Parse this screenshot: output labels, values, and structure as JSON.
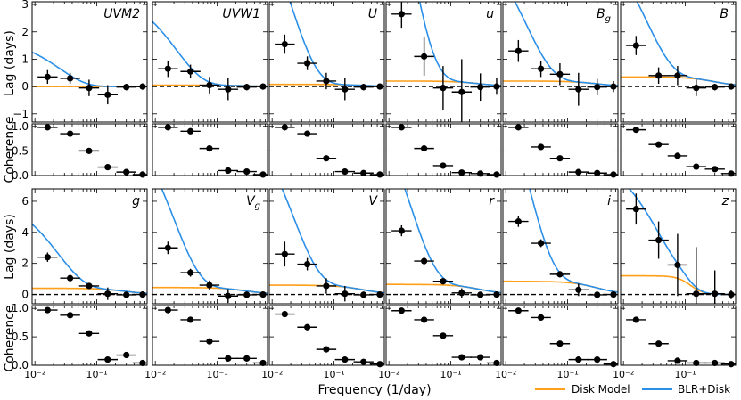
{
  "figure": {
    "xlabel": "Frequency (1/day)",
    "legend": [
      {
        "label": "Disk Model",
        "color": "#ff9f1a"
      },
      {
        "label": "BLR+Disk",
        "color": "#2b8fe8"
      }
    ],
    "row_labels": {
      "lag": "Lag (days)",
      "coherence": "Coherence"
    },
    "x_tick_labels": [
      "10⁻²",
      "10⁻¹"
    ],
    "x_scale": "log",
    "xlim": [
      0.009,
      0.65
    ]
  },
  "chart_data": [
    {
      "row": 1,
      "type": "scatter",
      "x": "frequency (1/day), log scale",
      "lag_ylim": [
        -1.3,
        3.1
      ],
      "lag_yticks": [
        "−1",
        "0",
        "1",
        "2",
        "3"
      ],
      "coherence_ylim": [
        0,
        1.05
      ],
      "coherence_yticks": [
        "0.0",
        "0.5",
        "1.0"
      ],
      "panels": [
        {
          "band": "UVM2",
          "lag": {
            "x": [
              0.016,
              0.037,
              0.075,
              0.15,
              0.3,
              0.55
            ],
            "y": [
              0.35,
              0.3,
              -0.05,
              -0.3,
              -0.02,
              0.0
            ],
            "yerr": [
              0.25,
              0.2,
              0.3,
              0.35,
              0.12,
              0.1
            ]
          },
          "coherence": {
            "x": [
              0.016,
              0.037,
              0.075,
              0.15,
              0.3,
              0.55
            ],
            "y": [
              0.98,
              0.85,
              0.5,
              0.17,
              0.07,
              0.02
            ]
          },
          "disk": {
            "a": 0.0,
            "fc": 0.3,
            "p": 2
          },
          "blr": {
            "A": 1.8,
            "f0": 0.025
          }
        },
        {
          "band": "UVW1",
          "lag": {
            "x": [
              0.016,
              0.037,
              0.075,
              0.15,
              0.3,
              0.55
            ],
            "y": [
              0.65,
              0.55,
              0.05,
              -0.1,
              -0.02,
              0.0
            ],
            "yerr": [
              0.3,
              0.25,
              0.3,
              0.4,
              0.12,
              0.1
            ]
          },
          "coherence": {
            "x": [
              0.016,
              0.037,
              0.075,
              0.15,
              0.3,
              0.55
            ],
            "y": [
              0.98,
              0.9,
              0.55,
              0.1,
              0.08,
              0.02
            ]
          },
          "disk": {
            "a": 0.05,
            "fc": 0.3,
            "p": 2
          },
          "blr": {
            "A": 3.5,
            "f0": 0.022
          }
        },
        {
          "band": "U",
          "lag": {
            "x": [
              0.016,
              0.037,
              0.075,
              0.15,
              0.3,
              0.55
            ],
            "y": [
              1.55,
              0.85,
              0.2,
              -0.1,
              -0.02,
              0.0
            ],
            "yerr": [
              0.35,
              0.25,
              0.3,
              0.4,
              0.12,
              0.1
            ]
          },
          "coherence": {
            "x": [
              0.016,
              0.037,
              0.075,
              0.15,
              0.3,
              0.55
            ],
            "y": [
              0.98,
              0.85,
              0.35,
              0.08,
              0.05,
              0.02
            ]
          },
          "disk": {
            "a": 0.08,
            "fc": 0.3,
            "p": 2
          },
          "blr": {
            "A": 8.0,
            "f0": 0.02
          }
        },
        {
          "band": "u",
          "lag": {
            "x": [
              0.016,
              0.037,
              0.075,
              0.15,
              0.3,
              0.55
            ],
            "y": [
              2.65,
              1.1,
              -0.05,
              -0.2,
              -0.02,
              0.0
            ],
            "yerr": [
              0.5,
              0.7,
              0.8,
              1.2,
              0.5,
              0.3
            ]
          },
          "coherence": {
            "x": [
              0.016,
              0.037,
              0.075,
              0.15,
              0.3,
              0.55
            ],
            "y": [
              0.98,
              0.55,
              0.2,
              0.06,
              0.04,
              0.02
            ]
          },
          "disk": {
            "a": 0.2,
            "fc": 0.3,
            "p": 2
          },
          "blr": {
            "A": 14.0,
            "f0": 0.02
          }
        },
        {
          "band": "B_g",
          "lag": {
            "x": [
              0.016,
              0.037,
              0.075,
              0.15,
              0.3,
              0.55
            ],
            "y": [
              1.3,
              0.65,
              0.45,
              -0.1,
              -0.02,
              0.0
            ],
            "yerr": [
              0.4,
              0.3,
              0.4,
              0.6,
              0.3,
              0.2
            ]
          },
          "coherence": {
            "x": [
              0.016,
              0.037,
              0.075,
              0.15,
              0.3,
              0.55
            ],
            "y": [
              0.98,
              0.58,
              0.35,
              0.07,
              0.05,
              0.02
            ]
          },
          "disk": {
            "a": 0.2,
            "fc": 0.3,
            "p": 2
          },
          "blr": {
            "A": 5.5,
            "f0": 0.022
          }
        },
        {
          "band": "B",
          "lag": {
            "x": [
              0.016,
              0.037,
              0.075,
              0.15,
              0.3,
              0.55
            ],
            "y": [
              1.5,
              0.4,
              0.4,
              -0.05,
              -0.02,
              0.0
            ],
            "yerr": [
              0.35,
              0.3,
              0.35,
              0.3,
              0.12,
              0.1
            ]
          },
          "coherence": {
            "x": [
              0.016,
              0.037,
              0.075,
              0.15,
              0.3,
              0.55
            ],
            "y": [
              0.93,
              0.63,
              0.4,
              0.18,
              0.13,
              0.04
            ]
          },
          "disk": {
            "a": 0.35,
            "fc": 0.3,
            "p": 2
          },
          "blr": {
            "A": 5.5,
            "f0": 0.024
          }
        }
      ]
    },
    {
      "row": 2,
      "type": "scatter",
      "x": "frequency (1/day), log scale",
      "lag_ylim": [
        -0.6,
        6.8
      ],
      "lag_yticks": [
        "0",
        "2",
        "4",
        "6"
      ],
      "coherence_ylim": [
        0,
        1.05
      ],
      "coherence_yticks": [
        "0.0",
        "0.5",
        "1.0"
      ],
      "panels": [
        {
          "band": "g",
          "lag": {
            "x": [
              0.016,
              0.037,
              0.075,
              0.15,
              0.3,
              0.55
            ],
            "y": [
              2.4,
              1.05,
              0.55,
              0.05,
              -0.02,
              0.0
            ],
            "yerr": [
              0.3,
              0.2,
              0.2,
              0.4,
              0.15,
              0.1
            ]
          },
          "coherence": {
            "x": [
              0.016,
              0.037,
              0.075,
              0.15,
              0.3,
              0.55
            ],
            "y": [
              0.97,
              0.88,
              0.56,
              0.1,
              0.18,
              0.04
            ]
          },
          "disk": {
            "a": 0.4,
            "fc": 0.3,
            "p": 2
          },
          "blr": {
            "A": 6.0,
            "f0": 0.024
          }
        },
        {
          "band": "V_g",
          "lag": {
            "x": [
              0.016,
              0.037,
              0.075,
              0.15,
              0.3,
              0.55
            ],
            "y": [
              3.0,
              1.4,
              0.6,
              -0.1,
              -0.02,
              0.0
            ],
            "yerr": [
              0.4,
              0.25,
              0.3,
              0.45,
              0.2,
              0.1
            ]
          },
          "coherence": {
            "x": [
              0.016,
              0.037,
              0.075,
              0.15,
              0.3,
              0.55
            ],
            "y": [
              0.97,
              0.8,
              0.42,
              0.12,
              0.12,
              0.04
            ]
          },
          "disk": {
            "a": 0.45,
            "fc": 0.3,
            "p": 2
          },
          "blr": {
            "A": 12.0,
            "f0": 0.02
          }
        },
        {
          "band": "V",
          "lag": {
            "x": [
              0.016,
              0.037,
              0.075,
              0.15,
              0.3,
              0.55
            ],
            "y": [
              2.6,
              1.95,
              0.55,
              0.05,
              -0.02,
              0.0
            ],
            "yerr": [
              0.8,
              0.4,
              0.5,
              0.5,
              0.2,
              0.1
            ]
          },
          "coherence": {
            "x": [
              0.016,
              0.037,
              0.075,
              0.15,
              0.3,
              0.55
            ],
            "y": [
              0.9,
              0.67,
              0.28,
              0.1,
              0.06,
              0.02
            ]
          },
          "disk": {
            "a": 0.6,
            "fc": 0.3,
            "p": 2
          },
          "blr": {
            "A": 12.0,
            "f0": 0.022
          }
        },
        {
          "band": "r",
          "lag": {
            "x": [
              0.016,
              0.037,
              0.075,
              0.15,
              0.3,
              0.55
            ],
            "y": [
              4.1,
              2.15,
              0.85,
              0.1,
              -0.02,
              0.0
            ],
            "yerr": [
              0.35,
              0.25,
              0.2,
              0.3,
              0.15,
              0.1
            ]
          },
          "coherence": {
            "x": [
              0.016,
              0.037,
              0.075,
              0.15,
              0.3,
              0.55
            ],
            "y": [
              0.96,
              0.8,
              0.52,
              0.14,
              0.14,
              0.04
            ]
          },
          "disk": {
            "a": 0.65,
            "fc": 0.3,
            "p": 2
          },
          "blr": {
            "A": 14.0,
            "f0": 0.022
          }
        },
        {
          "band": "i",
          "lag": {
            "x": [
              0.016,
              0.037,
              0.075,
              0.15,
              0.3,
              0.55
            ],
            "y": [
              4.7,
              3.3,
              1.3,
              0.3,
              -0.02,
              0.0
            ],
            "yerr": [
              0.35,
              0.25,
              0.2,
              0.4,
              0.2,
              0.1
            ]
          },
          "coherence": {
            "x": [
              0.016,
              0.037,
              0.075,
              0.15,
              0.3,
              0.55
            ],
            "y": [
              0.96,
              0.84,
              0.38,
              0.1,
              0.1,
              0.02
            ]
          },
          "disk": {
            "a": 0.85,
            "fc": 0.3,
            "p": 2
          },
          "blr": {
            "A": 18.0,
            "f0": 0.022
          }
        },
        {
          "band": "z",
          "lag": {
            "x": [
              0.016,
              0.037,
              0.075,
              0.15,
              0.3,
              0.55
            ],
            "y": [
              5.5,
              3.5,
              1.9,
              0.05,
              0.05,
              0.0
            ],
            "yerr": [
              1.0,
              1.2,
              2.0,
              3.0,
              1.5,
              0.3
            ]
          },
          "coherence": {
            "x": [
              0.016,
              0.037,
              0.075,
              0.15,
              0.3,
              0.55
            ],
            "y": [
              0.8,
              0.38,
              0.08,
              0.04,
              0.04,
              0.02
            ]
          },
          "disk": {
            "a": 1.2,
            "fc": 0.12,
            "p": 4
          },
          "blr": {
            "A": 8.0,
            "f0": 0.035
          }
        }
      ]
    }
  ]
}
